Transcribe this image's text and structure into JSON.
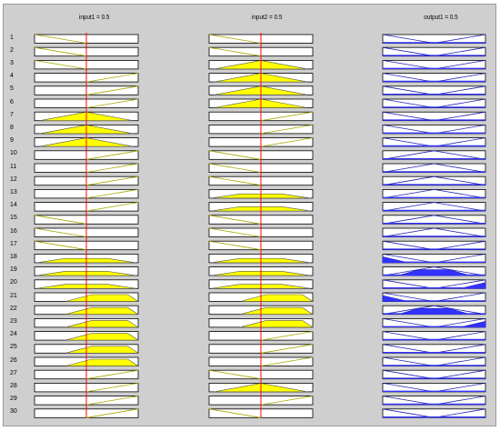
{
  "input1": {
    "label": "input1 = 0.5",
    "value": 0.5
  },
  "input2": {
    "label": "input2 = 0.5",
    "value": 0.5
  },
  "output1": {
    "label": "output1 = 0.5"
  },
  "colors": {
    "fill_input": "#ffff00",
    "fill_output": "#3333ff",
    "line_input": "#a8a800",
    "line_output": "#2222bb",
    "cursor": "#ff0000",
    "background": "#cfcfcf"
  },
  "rules": [
    {
      "n": "1",
      "in1": "L",
      "in2": "L",
      "out": "LH",
      "a1": 0,
      "a2": 0,
      "ao": 0
    },
    {
      "n": "2",
      "in1": "L",
      "in2": "L",
      "out": "LH",
      "a1": 0,
      "a2": 0,
      "ao": 0
    },
    {
      "n": "3",
      "in1": "L",
      "in2": "M",
      "out": "LH",
      "a1": 0,
      "a2": 1,
      "ao": 0
    },
    {
      "n": "4",
      "in1": "H",
      "in2": "M",
      "out": "LH",
      "a1": 0,
      "a2": 1,
      "ao": 0
    },
    {
      "n": "5",
      "in1": "H",
      "in2": "M",
      "out": "LH",
      "a1": 0,
      "a2": 1,
      "ao": 0
    },
    {
      "n": "6",
      "in1": "H",
      "in2": "M",
      "out": "LH",
      "a1": 0,
      "a2": 1,
      "ao": 0
    },
    {
      "n": "7",
      "in1": "M",
      "in2": "H",
      "out": "LH",
      "a1": 1,
      "a2": 0,
      "ao": 0
    },
    {
      "n": "8",
      "in1": "M",
      "in2": "H",
      "out": "LH",
      "a1": 1,
      "a2": 0,
      "ao": 0
    },
    {
      "n": "9",
      "in1": "M",
      "in2": "H",
      "out": "LH",
      "a1": 1,
      "a2": 0,
      "ao": 0
    },
    {
      "n": "10",
      "in1": "H",
      "in2": "L",
      "out": "M",
      "a1": 0,
      "a2": 0,
      "ao": 0
    },
    {
      "n": "11",
      "in1": "H",
      "in2": "L",
      "out": "M",
      "a1": 0,
      "a2": 0,
      "ao": 0
    },
    {
      "n": "12",
      "in1": "H",
      "in2": "L",
      "out": "M",
      "a1": 0,
      "a2": 0,
      "ao": 0
    },
    {
      "n": "13",
      "in1": "H",
      "in2": "M",
      "out": "M",
      "a1": 0,
      "a2": 0.5,
      "ao": 0
    },
    {
      "n": "14",
      "in1": "H",
      "in2": "M",
      "out": "M",
      "a1": 0,
      "a2": 0.5,
      "ao": 0
    },
    {
      "n": "15",
      "in1": "L",
      "in2": "L",
      "out": "M",
      "a1": 0,
      "a2": 0,
      "ao": 0
    },
    {
      "n": "16",
      "in1": "L",
      "in2": "L",
      "out": "M",
      "a1": 0,
      "a2": 0,
      "ao": 0
    },
    {
      "n": "17",
      "in1": "L",
      "in2": "L",
      "out": "LH",
      "a1": 0,
      "a2": 0,
      "ao": 0
    },
    {
      "n": "18",
      "in1": "M",
      "in2": "M",
      "out": "L",
      "a1": 0.5,
      "a2": 0.5,
      "ao": 0.5
    },
    {
      "n": "19",
      "in1": "M",
      "in2": "M",
      "out": "M",
      "a1": 0.5,
      "a2": 0.5,
      "ao": 0.5
    },
    {
      "n": "20",
      "in1": "M",
      "in2": "M",
      "out": "H",
      "a1": 0.5,
      "a2": 0.5,
      "ao": 0.5
    },
    {
      "n": "21",
      "in1": "H",
      "in2": "H",
      "out": "L",
      "a1": 0.5,
      "a2": 0.5,
      "ao": 0.5
    },
    {
      "n": "22",
      "in1": "H",
      "in2": "H",
      "out": "M",
      "a1": 0.5,
      "a2": 0.5,
      "ao": 0.5
    },
    {
      "n": "23",
      "in1": "H",
      "in2": "H",
      "out": "H",
      "a1": 0.5,
      "a2": 0.5,
      "ao": 0.5
    },
    {
      "n": "24",
      "in1": "H",
      "in2": "H",
      "out": "LH",
      "a1": 0.5,
      "a2": 0,
      "ao": 0
    },
    {
      "n": "25",
      "in1": "H",
      "in2": "H",
      "out": "LH",
      "a1": 0.5,
      "a2": 0,
      "ao": 0
    },
    {
      "n": "26",
      "in1": "H",
      "in2": "H",
      "out": "LH",
      "a1": 0.5,
      "a2": 0,
      "ao": 0
    },
    {
      "n": "27",
      "in1": "H",
      "in2": "L",
      "out": "LH",
      "a1": 0,
      "a2": 0,
      "ao": 0
    },
    {
      "n": "28",
      "in1": "H",
      "in2": "M",
      "out": "LH",
      "a1": 0,
      "a2": 1,
      "ao": 0
    },
    {
      "n": "29",
      "in1": "H",
      "in2": "H",
      "out": "LH",
      "a1": 0,
      "a2": 0,
      "ao": 0
    },
    {
      "n": "30",
      "in1": "H",
      "in2": "L",
      "out": "LH",
      "a1": 0,
      "a2": 0,
      "ao": 0
    }
  ]
}
